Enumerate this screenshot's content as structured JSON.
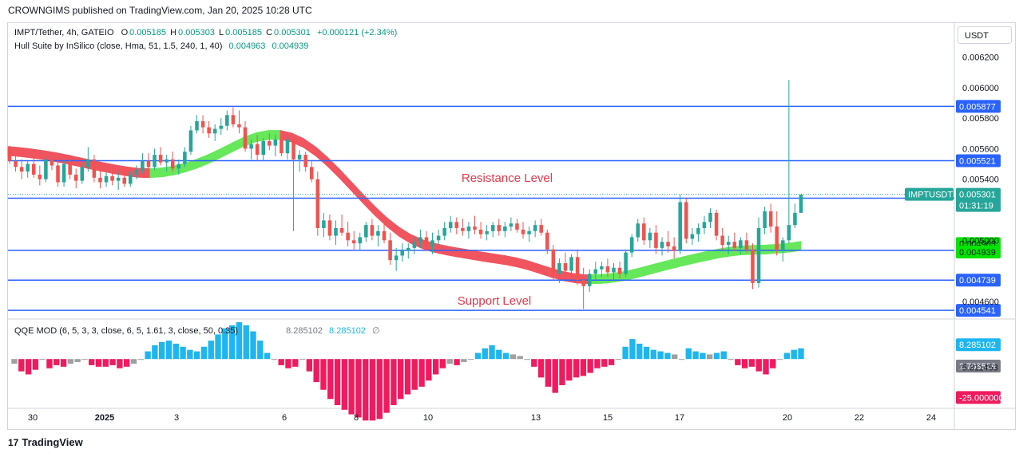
{
  "header": {
    "published": "CROWNGIMS published on TradingView.com, Jan 20, 2025 10:28 UTC"
  },
  "legend": {
    "symbol": "IMPT/Tether, 4h, GATEIO",
    "o_label": "O",
    "o": "0.005185",
    "h_label": "H",
    "h": "0.005303",
    "l_label": "L",
    "l": "0.005185",
    "c_label": "C",
    "c": "0.005301",
    "change": "+0.000121 (+2.34%)",
    "indicator": "Hull Suite by InSilico (close, Hma, 51, 1.5, 240, 1, 40)",
    "ind_v1": "0.004963",
    "ind_v2": "0.004939"
  },
  "qqe": {
    "name": "QQE MOD (6, 5, 3, 3, close, 6, 5, 1.61, 3, close, 50, 0.35)",
    "v1": "8.285102",
    "v2": "8.285102",
    "empty_symbol": "∅"
  },
  "currency_button": "USDT",
  "footer": {
    "brand": "TradingView",
    "logo": "17"
  },
  "colors": {
    "up": "#26a69a",
    "down": "#ef5350",
    "level": "#2962ff",
    "hull_up": "#66e85a",
    "hull_down": "#f0545f",
    "qqe_up": "#1eb6f0",
    "qqe_down": "#ef1b5e",
    "qqe_neutral": "#a0a0a0",
    "annotation": "#e8374a"
  },
  "chart_data": {
    "type": "candlestick",
    "symbol": "IMPTUSDT",
    "timeframe": "4h",
    "price_axis": {
      "range": [
        0.0045,
        0.00625
      ],
      "ticks": [
        "0.006200",
        "0.006000",
        "0.005800",
        "0.005600",
        "0.005400",
        "0.005000",
        "0.004600"
      ]
    },
    "time_axis": {
      "ticks": [
        "30",
        "2025",
        "3",
        "6",
        "8",
        "10",
        "13",
        "15",
        "17",
        "20",
        "22",
        "24"
      ]
    },
    "horizontal_levels": [
      {
        "price": 0.005877,
        "label": "0.005877"
      },
      {
        "price": 0.005521,
        "label": "0.005521"
      },
      {
        "price": 0.005276,
        "label": "0.005276"
      },
      {
        "price": 0.004934,
        "label": "0.004934"
      },
      {
        "price": 0.004739,
        "label": "0.004739"
      },
      {
        "price": 0.004541,
        "label": "0.004541"
      }
    ],
    "last_price": {
      "label": "IMPTUSDT",
      "price": "0.005301",
      "countdown": "01:31:19"
    },
    "hull_labels": [
      "0.004963",
      "0.004939"
    ],
    "annotations": [
      "Resistance Level",
      "Support Level"
    ],
    "candles": [
      [
        0.0056,
        0.00562,
        0.0055,
        0.00552
      ],
      [
        0.00552,
        0.00555,
        0.00545,
        0.00548
      ],
      [
        0.00548,
        0.00553,
        0.0054,
        0.00545
      ],
      [
        0.00545,
        0.00552,
        0.00541,
        0.0055
      ],
      [
        0.0055,
        0.00556,
        0.00541,
        0.00543
      ],
      [
        0.00543,
        0.00549,
        0.00536,
        0.0054
      ],
      [
        0.0054,
        0.00555,
        0.00538,
        0.00553
      ],
      [
        0.00553,
        0.00558,
        0.00546,
        0.00549
      ],
      [
        0.00549,
        0.00553,
        0.00535,
        0.00538
      ],
      [
        0.00538,
        0.00552,
        0.00535,
        0.0055
      ],
      [
        0.0055,
        0.00556,
        0.0054,
        0.00543
      ],
      [
        0.00543,
        0.00547,
        0.00534,
        0.00539
      ],
      [
        0.00539,
        0.00551,
        0.00537,
        0.00548
      ],
      [
        0.00548,
        0.00561,
        0.00545,
        0.00553
      ],
      [
        0.00553,
        0.00556,
        0.00538,
        0.00541
      ],
      [
        0.00541,
        0.00546,
        0.00534,
        0.00538
      ],
      [
        0.00538,
        0.00545,
        0.00535,
        0.00542
      ],
      [
        0.00542,
        0.00548,
        0.00536,
        0.00539
      ],
      [
        0.00539,
        0.00545,
        0.00533,
        0.00541
      ],
      [
        0.00541,
        0.00546,
        0.00535,
        0.00537
      ],
      [
        0.00537,
        0.00545,
        0.00535,
        0.00543
      ],
      [
        0.00543,
        0.00549,
        0.0054,
        0.00546
      ],
      [
        0.00546,
        0.00557,
        0.00544,
        0.00552
      ],
      [
        0.00552,
        0.00557,
        0.00545,
        0.00548
      ],
      [
        0.00548,
        0.0056,
        0.00546,
        0.00556
      ],
      [
        0.00556,
        0.00561,
        0.00549,
        0.00551
      ],
      [
        0.00551,
        0.00556,
        0.00545,
        0.00553
      ],
      [
        0.00553,
        0.00558,
        0.00545,
        0.00547
      ],
      [
        0.00547,
        0.00553,
        0.00543,
        0.0055
      ],
      [
        0.0055,
        0.00561,
        0.00548,
        0.00558
      ],
      [
        0.00558,
        0.00575,
        0.00556,
        0.00572
      ],
      [
        0.00572,
        0.00582,
        0.0057,
        0.00578
      ],
      [
        0.00578,
        0.00582,
        0.0057,
        0.00574
      ],
      [
        0.00574,
        0.00578,
        0.00567,
        0.0057
      ],
      [
        0.0057,
        0.00576,
        0.00565,
        0.00573
      ],
      [
        0.00573,
        0.0058,
        0.00569,
        0.00575
      ],
      [
        0.00575,
        0.00585,
        0.00572,
        0.00582
      ],
      [
        0.00582,
        0.00587,
        0.00574,
        0.00576
      ],
      [
        0.00576,
        0.00585,
        0.0057,
        0.00574
      ],
      [
        0.00574,
        0.00578,
        0.00558,
        0.0056
      ],
      [
        0.0056,
        0.00566,
        0.00553,
        0.00563
      ],
      [
        0.00563,
        0.00569,
        0.00552,
        0.00556
      ],
      [
        0.00556,
        0.00567,
        0.00552,
        0.00565
      ],
      [
        0.00565,
        0.0057,
        0.00559,
        0.00562
      ],
      [
        0.00562,
        0.00569,
        0.00555,
        0.00566
      ],
      [
        0.00566,
        0.00568,
        0.00555,
        0.00557
      ],
      [
        0.00557,
        0.00568,
        0.00553,
        0.00566
      ],
      [
        0.00566,
        0.00568,
        0.00506,
        0.00553
      ],
      [
        0.00553,
        0.00559,
        0.00545,
        0.00556
      ],
      [
        0.00556,
        0.00558,
        0.00545,
        0.00548
      ],
      [
        0.00548,
        0.00552,
        0.00538,
        0.0054
      ],
      [
        0.0054,
        0.00545,
        0.00503,
        0.00508
      ],
      [
        0.00508,
        0.00518,
        0.00502,
        0.00513
      ],
      [
        0.00513,
        0.00517,
        0.005,
        0.00503
      ],
      [
        0.00503,
        0.00513,
        0.00497,
        0.00508
      ],
      [
        0.00508,
        0.00517,
        0.00503,
        0.00505
      ],
      [
        0.00505,
        0.00512,
        0.00496,
        0.005
      ],
      [
        0.005,
        0.00506,
        0.00494,
        0.00498
      ],
      [
        0.00498,
        0.00505,
        0.00493,
        0.00502
      ],
      [
        0.00502,
        0.00512,
        0.00499,
        0.0051
      ],
      [
        0.0051,
        0.00514,
        0.005,
        0.00503
      ],
      [
        0.00503,
        0.0051,
        0.00496,
        0.00506
      ],
      [
        0.00506,
        0.00512,
        0.00498,
        0.005
      ],
      [
        0.005,
        0.00505,
        0.00484,
        0.00487
      ],
      [
        0.00487,
        0.00495,
        0.0048,
        0.0049
      ],
      [
        0.0049,
        0.00498,
        0.00486,
        0.00493
      ],
      [
        0.00493,
        0.00498,
        0.00488,
        0.00495
      ],
      [
        0.00495,
        0.00502,
        0.00491,
        0.00499
      ],
      [
        0.00499,
        0.00507,
        0.00495,
        0.00502
      ],
      [
        0.00502,
        0.00506,
        0.00493,
        0.00496
      ],
      [
        0.00496,
        0.00505,
        0.00491,
        0.005
      ],
      [
        0.005,
        0.00507,
        0.00497,
        0.00503
      ],
      [
        0.00503,
        0.00512,
        0.005,
        0.00508
      ],
      [
        0.00508,
        0.00516,
        0.00505,
        0.00512
      ],
      [
        0.00512,
        0.00515,
        0.00504,
        0.00508
      ],
      [
        0.00508,
        0.00514,
        0.00503,
        0.00506
      ],
      [
        0.00506,
        0.00512,
        0.00501,
        0.00509
      ],
      [
        0.00509,
        0.00516,
        0.00504,
        0.00507
      ],
      [
        0.00507,
        0.00512,
        0.00501,
        0.00504
      ],
      [
        0.00504,
        0.0051,
        0.005,
        0.00506
      ],
      [
        0.00506,
        0.00512,
        0.00502,
        0.0051
      ],
      [
        0.0051,
        0.00514,
        0.00503,
        0.00506
      ],
      [
        0.00506,
        0.00512,
        0.00502,
        0.00509
      ],
      [
        0.00509,
        0.00515,
        0.00506,
        0.00511
      ],
      [
        0.00511,
        0.00514,
        0.00505,
        0.00507
      ],
      [
        0.00507,
        0.00512,
        0.00501,
        0.00504
      ],
      [
        0.00504,
        0.00509,
        0.00499,
        0.00506
      ],
      [
        0.00506,
        0.00513,
        0.00502,
        0.0051
      ],
      [
        0.0051,
        0.00514,
        0.00503,
        0.00505
      ],
      [
        0.00505,
        0.00507,
        0.00491,
        0.00494
      ],
      [
        0.00494,
        0.00497,
        0.00474,
        0.00478
      ],
      [
        0.00478,
        0.00488,
        0.00472,
        0.00485
      ],
      [
        0.00485,
        0.00492,
        0.00476,
        0.0048
      ],
      [
        0.0048,
        0.00491,
        0.00476,
        0.00489
      ],
      [
        0.00489,
        0.00494,
        0.00471,
        0.00474
      ],
      [
        0.00474,
        0.00482,
        0.00455,
        0.0047
      ],
      [
        0.0047,
        0.00481,
        0.00466,
        0.00478
      ],
      [
        0.00478,
        0.00486,
        0.00473,
        0.00481
      ],
      [
        0.00481,
        0.00486,
        0.00476,
        0.00483
      ],
      [
        0.00483,
        0.00488,
        0.00476,
        0.00479
      ],
      [
        0.00479,
        0.00485,
        0.00474,
        0.00482
      ],
      [
        0.00482,
        0.00486,
        0.00475,
        0.00478
      ],
      [
        0.00478,
        0.00494,
        0.00476,
        0.00492
      ],
      [
        0.00492,
        0.00504,
        0.00489,
        0.00502
      ],
      [
        0.00502,
        0.00514,
        0.00499,
        0.00511
      ],
      [
        0.00511,
        0.00515,
        0.00497,
        0.005
      ],
      [
        0.005,
        0.00508,
        0.00495,
        0.00505
      ],
      [
        0.00505,
        0.0051,
        0.00491,
        0.00495
      ],
      [
        0.00495,
        0.00502,
        0.0049,
        0.00499
      ],
      [
        0.00499,
        0.00506,
        0.00492,
        0.00496
      ],
      [
        0.00496,
        0.00502,
        0.00488,
        0.00493
      ],
      [
        0.00493,
        0.0053,
        0.00491,
        0.00525
      ],
      [
        0.00525,
        0.00528,
        0.00498,
        0.00501
      ],
      [
        0.00501,
        0.00508,
        0.00497,
        0.00504
      ],
      [
        0.00504,
        0.00511,
        0.00499,
        0.00508
      ],
      [
        0.00508,
        0.00516,
        0.00504,
        0.00512
      ],
      [
        0.00512,
        0.00521,
        0.00508,
        0.00518
      ],
      [
        0.00518,
        0.0052,
        0.005,
        0.00503
      ],
      [
        0.00503,
        0.00508,
        0.00494,
        0.00497
      ],
      [
        0.00497,
        0.00503,
        0.00491,
        0.00499
      ],
      [
        0.00499,
        0.00505,
        0.00493,
        0.00495
      ],
      [
        0.00495,
        0.00502,
        0.00491,
        0.005
      ],
      [
        0.005,
        0.00505,
        0.00492,
        0.00494
      ],
      [
        0.00494,
        0.00498,
        0.00468,
        0.00472
      ],
      [
        0.00472,
        0.00515,
        0.00469,
        0.00508
      ],
      [
        0.00508,
        0.00522,
        0.00504,
        0.00519
      ],
      [
        0.00519,
        0.00524,
        0.00505,
        0.00509
      ],
      [
        0.00509,
        0.00519,
        0.0049,
        0.00494
      ],
      [
        0.00494,
        0.00502,
        0.00486,
        0.005
      ],
      [
        0.005,
        0.00605,
        0.00498,
        0.0051
      ],
      [
        0.0051,
        0.00524,
        0.00508,
        0.00518
      ],
      [
        0.00518,
        0.0053,
        0.00518,
        0.0053
      ]
    ],
    "hull": [
      0.005585,
      0.005578,
      0.005569,
      0.005558,
      0.005545,
      0.00553,
      0.005513,
      0.005496,
      0.00548,
      0.005465,
      0.005452,
      0.005442,
      0.00544,
      0.005445,
      0.005457,
      0.005477,
      0.005503,
      0.005535,
      0.005572,
      0.005611,
      0.005648,
      0.005676,
      0.00569,
      0.00569,
      0.005672,
      0.005636,
      0.005582,
      0.005514,
      0.005437,
      0.005355,
      0.005272,
      0.005192,
      0.00512,
      0.005058,
      0.00501,
      0.004975,
      0.004951,
      0.004934,
      0.00492,
      0.004907,
      0.004894,
      0.004882,
      0.00487,
      0.004855,
      0.004835,
      0.00481,
      0.004785,
      0.004764,
      0.00475,
      0.004745,
      0.004746,
      0.004753,
      0.004765,
      0.004782,
      0.004802,
      0.004823,
      0.004843,
      0.004862,
      0.00488,
      0.004897,
      0.004913,
      0.004926,
      0.004934,
      0.004937,
      0.004939,
      0.004945,
      0.004952,
      0.004963
    ],
    "qqe": {
      "range": [
        -30,
        25
      ],
      "ticks": [
        "8.285102",
        "2.708528",
        "-5.311453",
        "-25.000000"
      ],
      "histogram": [
        -3,
        -8,
        -10,
        -7,
        0,
        -6,
        -4,
        -5,
        -3,
        -2,
        0,
        -4,
        -5,
        -5,
        -4,
        -6,
        -5,
        -3,
        0,
        5,
        9,
        11,
        12,
        10,
        8,
        6,
        5,
        8,
        12,
        16,
        20,
        22,
        24,
        22,
        18,
        12,
        4,
        0,
        -4,
        -6,
        -5,
        0,
        -8,
        -15,
        -20,
        -26,
        -30,
        -33,
        -36,
        -38,
        -40,
        -40,
        -39,
        -35,
        -30,
        -26,
        -23,
        -20,
        -18,
        -14,
        -10,
        -6,
        -3,
        -4,
        -2,
        0,
        4,
        7,
        9,
        6,
        4,
        3,
        2,
        0,
        -5,
        -12,
        -18,
        -22,
        -17,
        -14,
        -12,
        -11,
        -9,
        -6,
        -5,
        -4,
        0,
        8,
        13,
        10,
        8,
        6,
        5,
        4,
        3,
        0,
        7,
        5,
        4,
        3,
        4,
        5,
        0,
        -4,
        -6,
        -5,
        -8,
        -10,
        -6,
        0,
        4,
        6,
        7
      ]
    }
  }
}
